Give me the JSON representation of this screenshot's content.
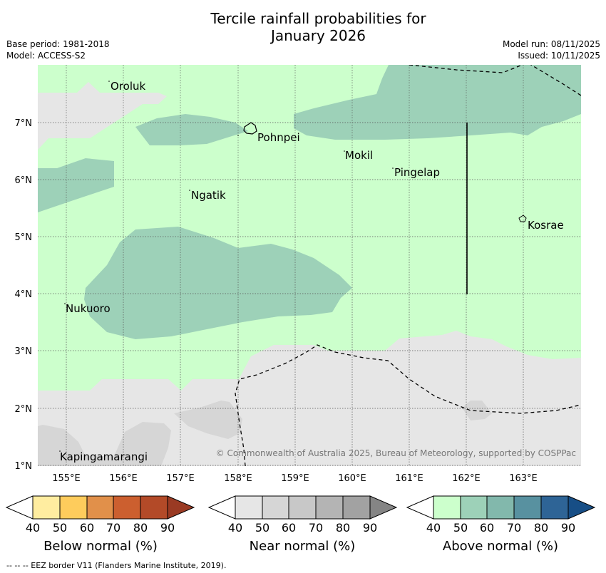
{
  "title_line1": "Tercile rainfall probabilities for",
  "title_line2": "January 2026",
  "meta": {
    "base_period": "Base period: 1981-2018",
    "model": "Model: ACCESS-S2",
    "model_run": "Model run: 08/11/2025",
    "issued": "Issued: 10/11/2025"
  },
  "map": {
    "lat_labels": [
      "7°N",
      "6°N",
      "5°N",
      "4°N",
      "3°N",
      "2°N",
      "1°N"
    ],
    "lon_labels": [
      "155°E",
      "156°E",
      "157°E",
      "158°E",
      "159°E",
      "160°E",
      "161°E",
      "162°E",
      "163°E"
    ],
    "places": {
      "oroluk": "Oroluk",
      "pohnpei": "Pohnpei",
      "mokil": "Mokil",
      "pingelap": "Pingelap",
      "ngatik": "Ngatik",
      "kosrae": "Kosrae",
      "nukuoro": "Nukuoro",
      "kapingamarangi": "Kapingamarangi"
    },
    "copyright": "© Commonwealth of Australia 2025, Bureau of Meteorology, supported by COSPPac"
  },
  "colorbars": {
    "below": {
      "title": "Below normal (%)",
      "ticks": [
        "40",
        "50",
        "60",
        "70",
        "80",
        "90"
      ],
      "colors": [
        "#ffffff",
        "#ffeda0",
        "#fecc5c",
        "#e1904a",
        "#cc5f2f",
        "#b34a28",
        "#9a3a23"
      ]
    },
    "near": {
      "title": "Near normal (%)",
      "ticks": [
        "40",
        "50",
        "60",
        "70",
        "80",
        "90"
      ],
      "colors": [
        "#ffffff",
        "#e6e6e6",
        "#d6d6d6",
        "#c8c8c8",
        "#b4b4b4",
        "#a2a2a2",
        "#858585"
      ]
    },
    "above": {
      "title": "Above normal (%)",
      "ticks": [
        "40",
        "50",
        "60",
        "70",
        "80",
        "90"
      ],
      "colors": [
        "#ffffff",
        "#ccffcc",
        "#9dd1b8",
        "#82b8ac",
        "#5891a0",
        "#2e6496",
        "#174e86"
      ]
    }
  },
  "footnote": "--  --  -- EEZ border V11 (Flanders Marine Institute, 2019).",
  "colors": {
    "above_light": "#ccffcc",
    "above_mid": "#9dd1b8",
    "near_light": "#e6e6e6",
    "near_mid": "#d6d6d6"
  }
}
